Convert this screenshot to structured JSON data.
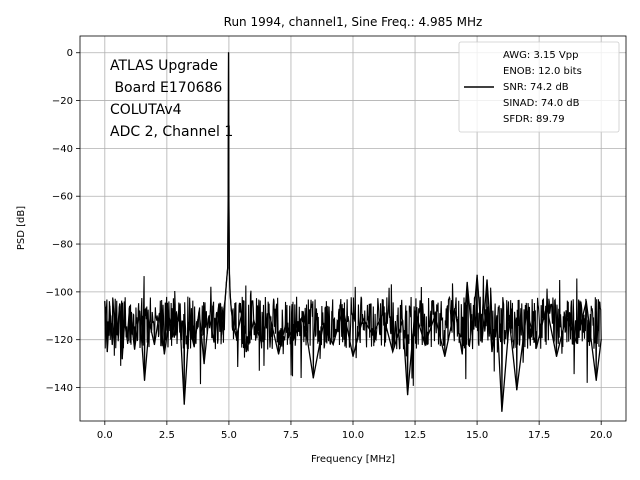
{
  "chart_data": {
    "type": "line",
    "title": "Run 1994, channel1, Sine Freq.: 4.985 MHz",
    "xlabel": "Frequency [MHz]",
    "ylabel": "PSD [dB]",
    "xlim": [
      -1.0,
      21.0
    ],
    "ylim": [
      -154,
      7
    ],
    "xticks": [
      0.0,
      2.5,
      5.0,
      7.5,
      10.0,
      12.5,
      15.0,
      17.5,
      20.0
    ],
    "xtick_labels": [
      "0.0",
      "2.5",
      "5.0",
      "7.5",
      "10.0",
      "12.5",
      "15.0",
      "17.5",
      "20.0"
    ],
    "yticks": [
      0,
      -20,
      -40,
      -60,
      -80,
      -100,
      -120,
      -140
    ],
    "ytick_labels": [
      "0",
      "−20",
      "−40",
      "−60",
      "−80",
      "−100",
      "−120",
      "−140"
    ],
    "grid": true,
    "legend_position": "top-right",
    "line_color": "#000000",
    "annotation_lines": [
      "ATLAS Upgrade",
      " Board E170686",
      "COLUTAv4",
      "ADC 2, Channel 1"
    ],
    "legend_lines": [
      "AWG: 3.15 Vpp",
      "ENOB: 12.0 bits",
      "SNR: 74.2 dB",
      "SINAD: 74.0 dB",
      "SFDR: 89.79"
    ],
    "series": [
      {
        "x": [
          0.0,
          0.1,
          0.2,
          0.3,
          0.4,
          0.5,
          0.6,
          0.7,
          0.8,
          0.9,
          1.0,
          1.2,
          1.4,
          1.6,
          1.8,
          2.0,
          2.2,
          2.4,
          2.6,
          2.8,
          3.0,
          3.2,
          3.4,
          3.6,
          3.8,
          4.0,
          4.2,
          4.4,
          4.6,
          4.7,
          4.8,
          4.85,
          4.9,
          4.95,
          4.97,
          4.985,
          5.0,
          5.02,
          5.05,
          5.1,
          5.2,
          5.3,
          5.5,
          5.7,
          6.0,
          6.3,
          6.6,
          7.0,
          7.3,
          7.6,
          8.0,
          8.4,
          8.8,
          9.2,
          9.6,
          10.0,
          10.4,
          10.8,
          11.2,
          11.6,
          12.0,
          12.2,
          12.5,
          12.9,
          13.3,
          13.7,
          14.1,
          14.4,
          14.6,
          14.8,
          15.0,
          15.2,
          15.4,
          15.6,
          15.8,
          16.0,
          16.3,
          16.6,
          17.0,
          17.4,
          17.8,
          18.2,
          18.6,
          19.0,
          19.4,
          19.8,
          20.0
        ],
        "y": [
          -104,
          -125,
          -106,
          -122,
          -110,
          -118,
          -105,
          -128,
          -112,
          -120,
          -106,
          -124,
          -108,
          -137,
          -113,
          -122,
          -109,
          -126,
          -111,
          -119,
          -107,
          -147,
          -114,
          -123,
          -108,
          -130,
          -110,
          -121,
          -105,
          -118,
          -107,
          -103,
          -96,
          -90,
          -60,
          0,
          -62,
          -92,
          -101,
          -108,
          -115,
          -119,
          -110,
          -125,
          -112,
          -121,
          -108,
          -126,
          -113,
          -120,
          -109,
          -136,
          -114,
          -122,
          -107,
          -127,
          -111,
          -118,
          -109,
          -125,
          -112,
          -143,
          -108,
          -122,
          -110,
          -127,
          -107,
          -126,
          -96,
          -118,
          -93,
          -121,
          -95,
          -125,
          -110,
          -150,
          -112,
          -141,
          -108,
          -123,
          -106,
          -127,
          -110,
          -121,
          -104,
          -137,
          -120
        ]
      }
    ]
  }
}
